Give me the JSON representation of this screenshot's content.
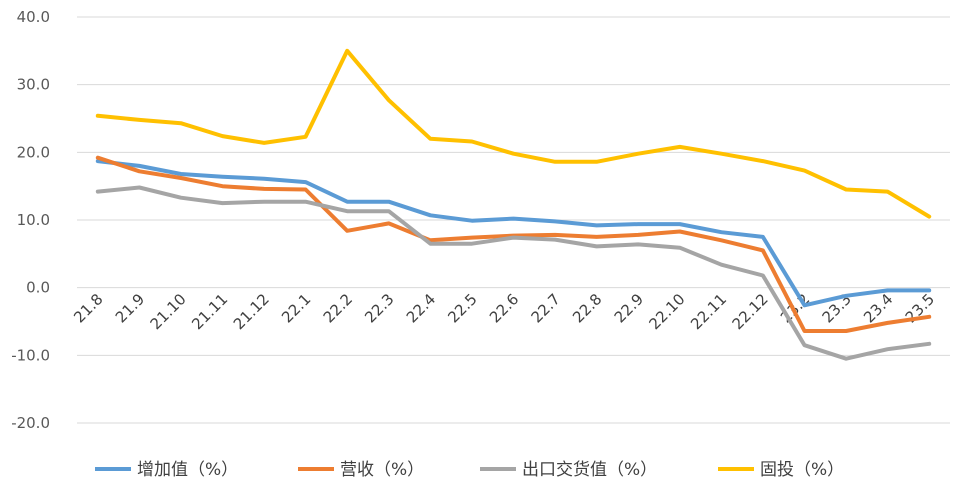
{
  "chart_data": {
    "type": "line",
    "categories": [
      "21.8",
      "21.9",
      "21.10",
      "21.11",
      "21.12",
      "22.1",
      "22.2",
      "22.3",
      "22.4",
      "22.5",
      "22.6",
      "22.7",
      "22.8",
      "22.9",
      "22.10",
      "22.11",
      "22.12",
      "23.2",
      "23.3",
      "23.4",
      "23.5"
    ],
    "ylim": [
      -20,
      40
    ],
    "yticks": [
      "-20.0",
      "-10.0",
      "0.0",
      "10.0",
      "20.0",
      "30.0",
      "40.0"
    ],
    "grid": true,
    "legend": "bottom",
    "series": [
      {
        "name": "增加值（%）",
        "color": "#5b9bd5",
        "values": [
          18.7,
          18.0,
          16.8,
          16.4,
          16.1,
          15.6,
          12.7,
          12.7,
          10.7,
          9.9,
          10.2,
          9.8,
          9.2,
          9.4,
          9.4,
          8.2,
          7.5,
          -2.6,
          -1.2,
          -0.4,
          -0.4
        ]
      },
      {
        "name": "营收（%）",
        "color": "#ed7d31",
        "values": [
          19.2,
          17.2,
          16.2,
          15.0,
          14.6,
          14.5,
          8.4,
          9.5,
          7.0,
          7.4,
          7.7,
          7.8,
          7.5,
          7.8,
          8.3,
          7.0,
          5.5,
          -6.4,
          -6.4,
          -5.2,
          -4.3
        ]
      },
      {
        "name": "出口交货值（%）",
        "color": "#a5a5a5",
        "values": [
          14.2,
          14.8,
          13.3,
          12.5,
          12.7,
          12.7,
          11.3,
          11.3,
          6.5,
          6.5,
          7.4,
          7.1,
          6.1,
          6.4,
          5.9,
          3.4,
          1.8,
          -8.5,
          -10.5,
          -9.1,
          -8.3
        ]
      },
      {
        "name": "固投（%）",
        "color": "#ffc000",
        "values": [
          25.4,
          24.8,
          24.3,
          22.4,
          21.4,
          22.3,
          35.0,
          27.7,
          22.0,
          21.6,
          19.8,
          18.6,
          18.6,
          19.8,
          20.8,
          19.8,
          18.7,
          17.3,
          14.5,
          14.2,
          10.5
        ]
      }
    ]
  }
}
